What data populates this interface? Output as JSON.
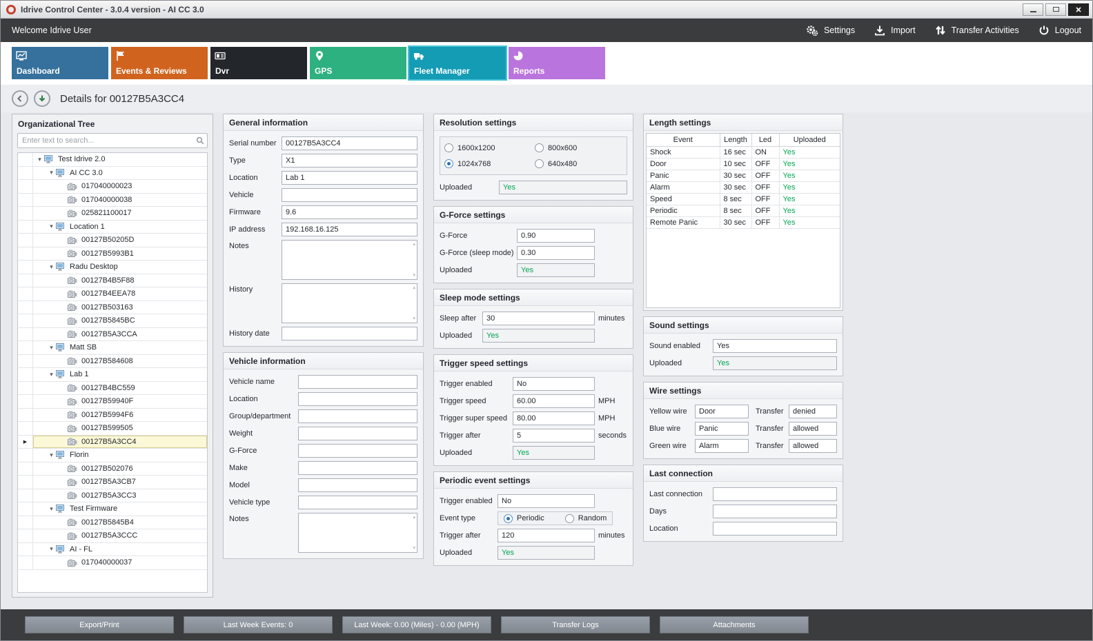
{
  "window": {
    "title": "Idrive Control Center - 3.0.4 version - AI CC 3.0"
  },
  "topbar": {
    "welcome": "Welcome Idrive User",
    "settings": "Settings",
    "import": "Import",
    "transfer": "Transfer Activities",
    "logout": "Logout"
  },
  "tabs": [
    {
      "label": "Dashboard",
      "color": "#35719c",
      "selected": false
    },
    {
      "label": "Events & Reviews",
      "color": "#d0641f",
      "selected": false
    },
    {
      "label": "Dvr",
      "color": "#23262b",
      "selected": false
    },
    {
      "label": "GPS",
      "color": "#2eb180",
      "selected": false
    },
    {
      "label": "Fleet Manager",
      "color": "#149cb4",
      "selected": true
    },
    {
      "label": "Reports",
      "color": "#ba74de",
      "selected": false
    }
  ],
  "details": {
    "title": "Details for 00127B5A3CC4"
  },
  "org_tree": {
    "title": "Organizational Tree",
    "search_placeholder": "Enter text to search...",
    "items": [
      {
        "label": "Test Idrive 2.0",
        "level": 0,
        "type": "group"
      },
      {
        "label": "AI CC 3.0",
        "level": 1,
        "type": "group"
      },
      {
        "label": "017040000023",
        "level": 2,
        "type": "device"
      },
      {
        "label": "017040000038",
        "level": 2,
        "type": "device"
      },
      {
        "label": "025821100017",
        "level": 2,
        "type": "device"
      },
      {
        "label": "Location 1",
        "level": 1,
        "type": "group"
      },
      {
        "label": "00127B50205D",
        "level": 2,
        "type": "device"
      },
      {
        "label": "00127B5993B1",
        "level": 2,
        "type": "device"
      },
      {
        "label": "Radu Desktop",
        "level": 1,
        "type": "group"
      },
      {
        "label": "00127B4B5F88",
        "level": 2,
        "type": "device"
      },
      {
        "label": "00127B4EEA78",
        "level": 2,
        "type": "device"
      },
      {
        "label": "00127B503163",
        "level": 2,
        "type": "device"
      },
      {
        "label": "00127B5845BC",
        "level": 2,
        "type": "device"
      },
      {
        "label": "00127B5A3CCA",
        "level": 2,
        "type": "device"
      },
      {
        "label": "Matt SB",
        "level": 1,
        "type": "group"
      },
      {
        "label": "00127B584608",
        "level": 2,
        "type": "device"
      },
      {
        "label": "Lab 1",
        "level": 1,
        "type": "group"
      },
      {
        "label": "00127B4BC559",
        "level": 2,
        "type": "device"
      },
      {
        "label": "00127B59940F",
        "level": 2,
        "type": "device"
      },
      {
        "label": "00127B5994F6",
        "level": 2,
        "type": "device"
      },
      {
        "label": "00127B599505",
        "level": 2,
        "type": "device"
      },
      {
        "label": "00127B5A3CC4",
        "level": 2,
        "type": "device",
        "selected": true
      },
      {
        "label": "Florin",
        "level": 1,
        "type": "group"
      },
      {
        "label": "00127B502076",
        "level": 2,
        "type": "device"
      },
      {
        "label": "00127B5A3CB7",
        "level": 2,
        "type": "device"
      },
      {
        "label": "00127B5A3CC3",
        "level": 2,
        "type": "device"
      },
      {
        "label": "Test Firmware",
        "level": 1,
        "type": "group"
      },
      {
        "label": "00127B5845B4",
        "level": 2,
        "type": "device"
      },
      {
        "label": "00127B5A3CCC",
        "level": 2,
        "type": "device"
      },
      {
        "label": "AI - FL",
        "level": 1,
        "type": "group"
      },
      {
        "label": "017040000037",
        "level": 2,
        "type": "device"
      }
    ]
  },
  "general": {
    "title": "General information",
    "fields": [
      {
        "label": "Serial number",
        "value": "00127B5A3CC4"
      },
      {
        "label": "Type",
        "value": "X1"
      },
      {
        "label": "Location",
        "value": "Lab 1"
      },
      {
        "label": "Vehicle",
        "value": ""
      },
      {
        "label": "Firmware",
        "value": "9.6"
      },
      {
        "label": "IP address",
        "value": "192.168.16.125"
      },
      {
        "label": "Notes",
        "value": "",
        "multiline": true
      },
      {
        "label": "History",
        "value": "",
        "multiline": true
      },
      {
        "label": "History date",
        "value": ""
      }
    ]
  },
  "vehicle": {
    "title": "Vehicle information",
    "fields": [
      {
        "label": "Vehicle name",
        "value": ""
      },
      {
        "label": "Location",
        "value": ""
      },
      {
        "label": "Group/department",
        "value": ""
      },
      {
        "label": "Weight",
        "value": ""
      },
      {
        "label": "G-Force",
        "value": ""
      },
      {
        "label": "Make",
        "value": ""
      },
      {
        "label": "Model",
        "value": ""
      },
      {
        "label": "Vehicle type",
        "value": ""
      },
      {
        "label": "Notes",
        "value": "",
        "multiline": true
      }
    ]
  },
  "resolution": {
    "title": "Resolution settings",
    "options": [
      {
        "label": "1600x1200",
        "selected": false
      },
      {
        "label": "800x600",
        "selected": false
      },
      {
        "label": "1024x768",
        "selected": true
      },
      {
        "label": "640x480",
        "selected": false
      }
    ],
    "fields": [
      {
        "label": "Uploaded",
        "value": "Yes",
        "green": true
      }
    ]
  },
  "gforce": {
    "title": "G-Force settings",
    "fields": [
      {
        "label": "G-Force",
        "value": "0.90"
      },
      {
        "label": "G-Force (sleep mode)",
        "value": "0.30"
      },
      {
        "label": "Uploaded",
        "value": "Yes",
        "green": true
      }
    ]
  },
  "sleep": {
    "title": "Sleep mode settings",
    "fields": [
      {
        "label": "Sleep after",
        "value": "30",
        "suffix": "minutes"
      },
      {
        "label": "Uploaded",
        "value": "Yes",
        "green": true
      }
    ]
  },
  "trigger_speed": {
    "title": "Trigger speed settings",
    "fields": [
      {
        "label": "Trigger enabled",
        "value": "No"
      },
      {
        "label": "Trigger speed",
        "value": "60.00",
        "suffix": "MPH"
      },
      {
        "label": "Trigger super speed",
        "value": "80.00",
        "suffix": "MPH"
      },
      {
        "label": "Trigger after",
        "value": "5",
        "suffix": "seconds"
      },
      {
        "label": "Uploaded",
        "value": "Yes",
        "green": true
      }
    ]
  },
  "periodic": {
    "title": "Periodic event settings",
    "fields_top": [
      {
        "label": "Trigger enabled",
        "value": "No"
      }
    ],
    "event_type_label": "Event type",
    "event_type_options": [
      {
        "label": "Periodic",
        "selected": true
      },
      {
        "label": "Random",
        "selected": false
      }
    ],
    "fields_bottom": [
      {
        "label": "Trigger after",
        "value": "120",
        "suffix": "minutes"
      },
      {
        "label": "Uploaded",
        "value": "Yes",
        "green": true
      }
    ]
  },
  "length_settings": {
    "title": "Length settings",
    "columns": [
      "Event",
      "Length",
      "Led",
      "Uploaded"
    ],
    "rows": [
      [
        "Shock",
        "16 sec",
        "ON",
        "Yes"
      ],
      [
        "Door",
        "10 sec",
        "OFF",
        "Yes"
      ],
      [
        "Panic",
        "30 sec",
        "OFF",
        "Yes"
      ],
      [
        "Alarm",
        "30 sec",
        "OFF",
        "Yes"
      ],
      [
        "Speed",
        "8 sec",
        "OFF",
        "Yes"
      ],
      [
        "Periodic",
        "8 sec",
        "OFF",
        "Yes"
      ],
      [
        "Remote Panic",
        "30 sec",
        "OFF",
        "Yes"
      ]
    ]
  },
  "sound": {
    "title": "Sound settings",
    "fields": [
      {
        "label": "Sound enabled",
        "value": "Yes"
      },
      {
        "label": "Uploaded",
        "value": "Yes",
        "green": true
      }
    ]
  },
  "wire": {
    "title": "Wire settings",
    "rows": [
      {
        "label": "Yellow wire",
        "value": "Door",
        "transfer_label": "Transfer",
        "transfer_value": "denied"
      },
      {
        "label": "Blue wire",
        "value": "Panic",
        "transfer_label": "Transfer",
        "transfer_value": "allowed"
      },
      {
        "label": "Green wire",
        "value": "Alarm",
        "transfer_label": "Transfer",
        "transfer_value": "allowed"
      }
    ]
  },
  "last_connection": {
    "title": "Last connection",
    "fields": [
      {
        "label": "Last connection",
        "value": ""
      },
      {
        "label": "Days",
        "value": ""
      },
      {
        "label": "Location",
        "value": ""
      }
    ]
  },
  "bottombar": {
    "buttons": [
      "Export/Print",
      "Last Week Events: 0",
      "Last Week: 0.00 (Miles) - 0.00 (MPH)",
      "Transfer Logs",
      "Attachments"
    ]
  },
  "colors": {
    "positive_green": "#00a550",
    "selected_tab_outline": "#49c3da"
  }
}
